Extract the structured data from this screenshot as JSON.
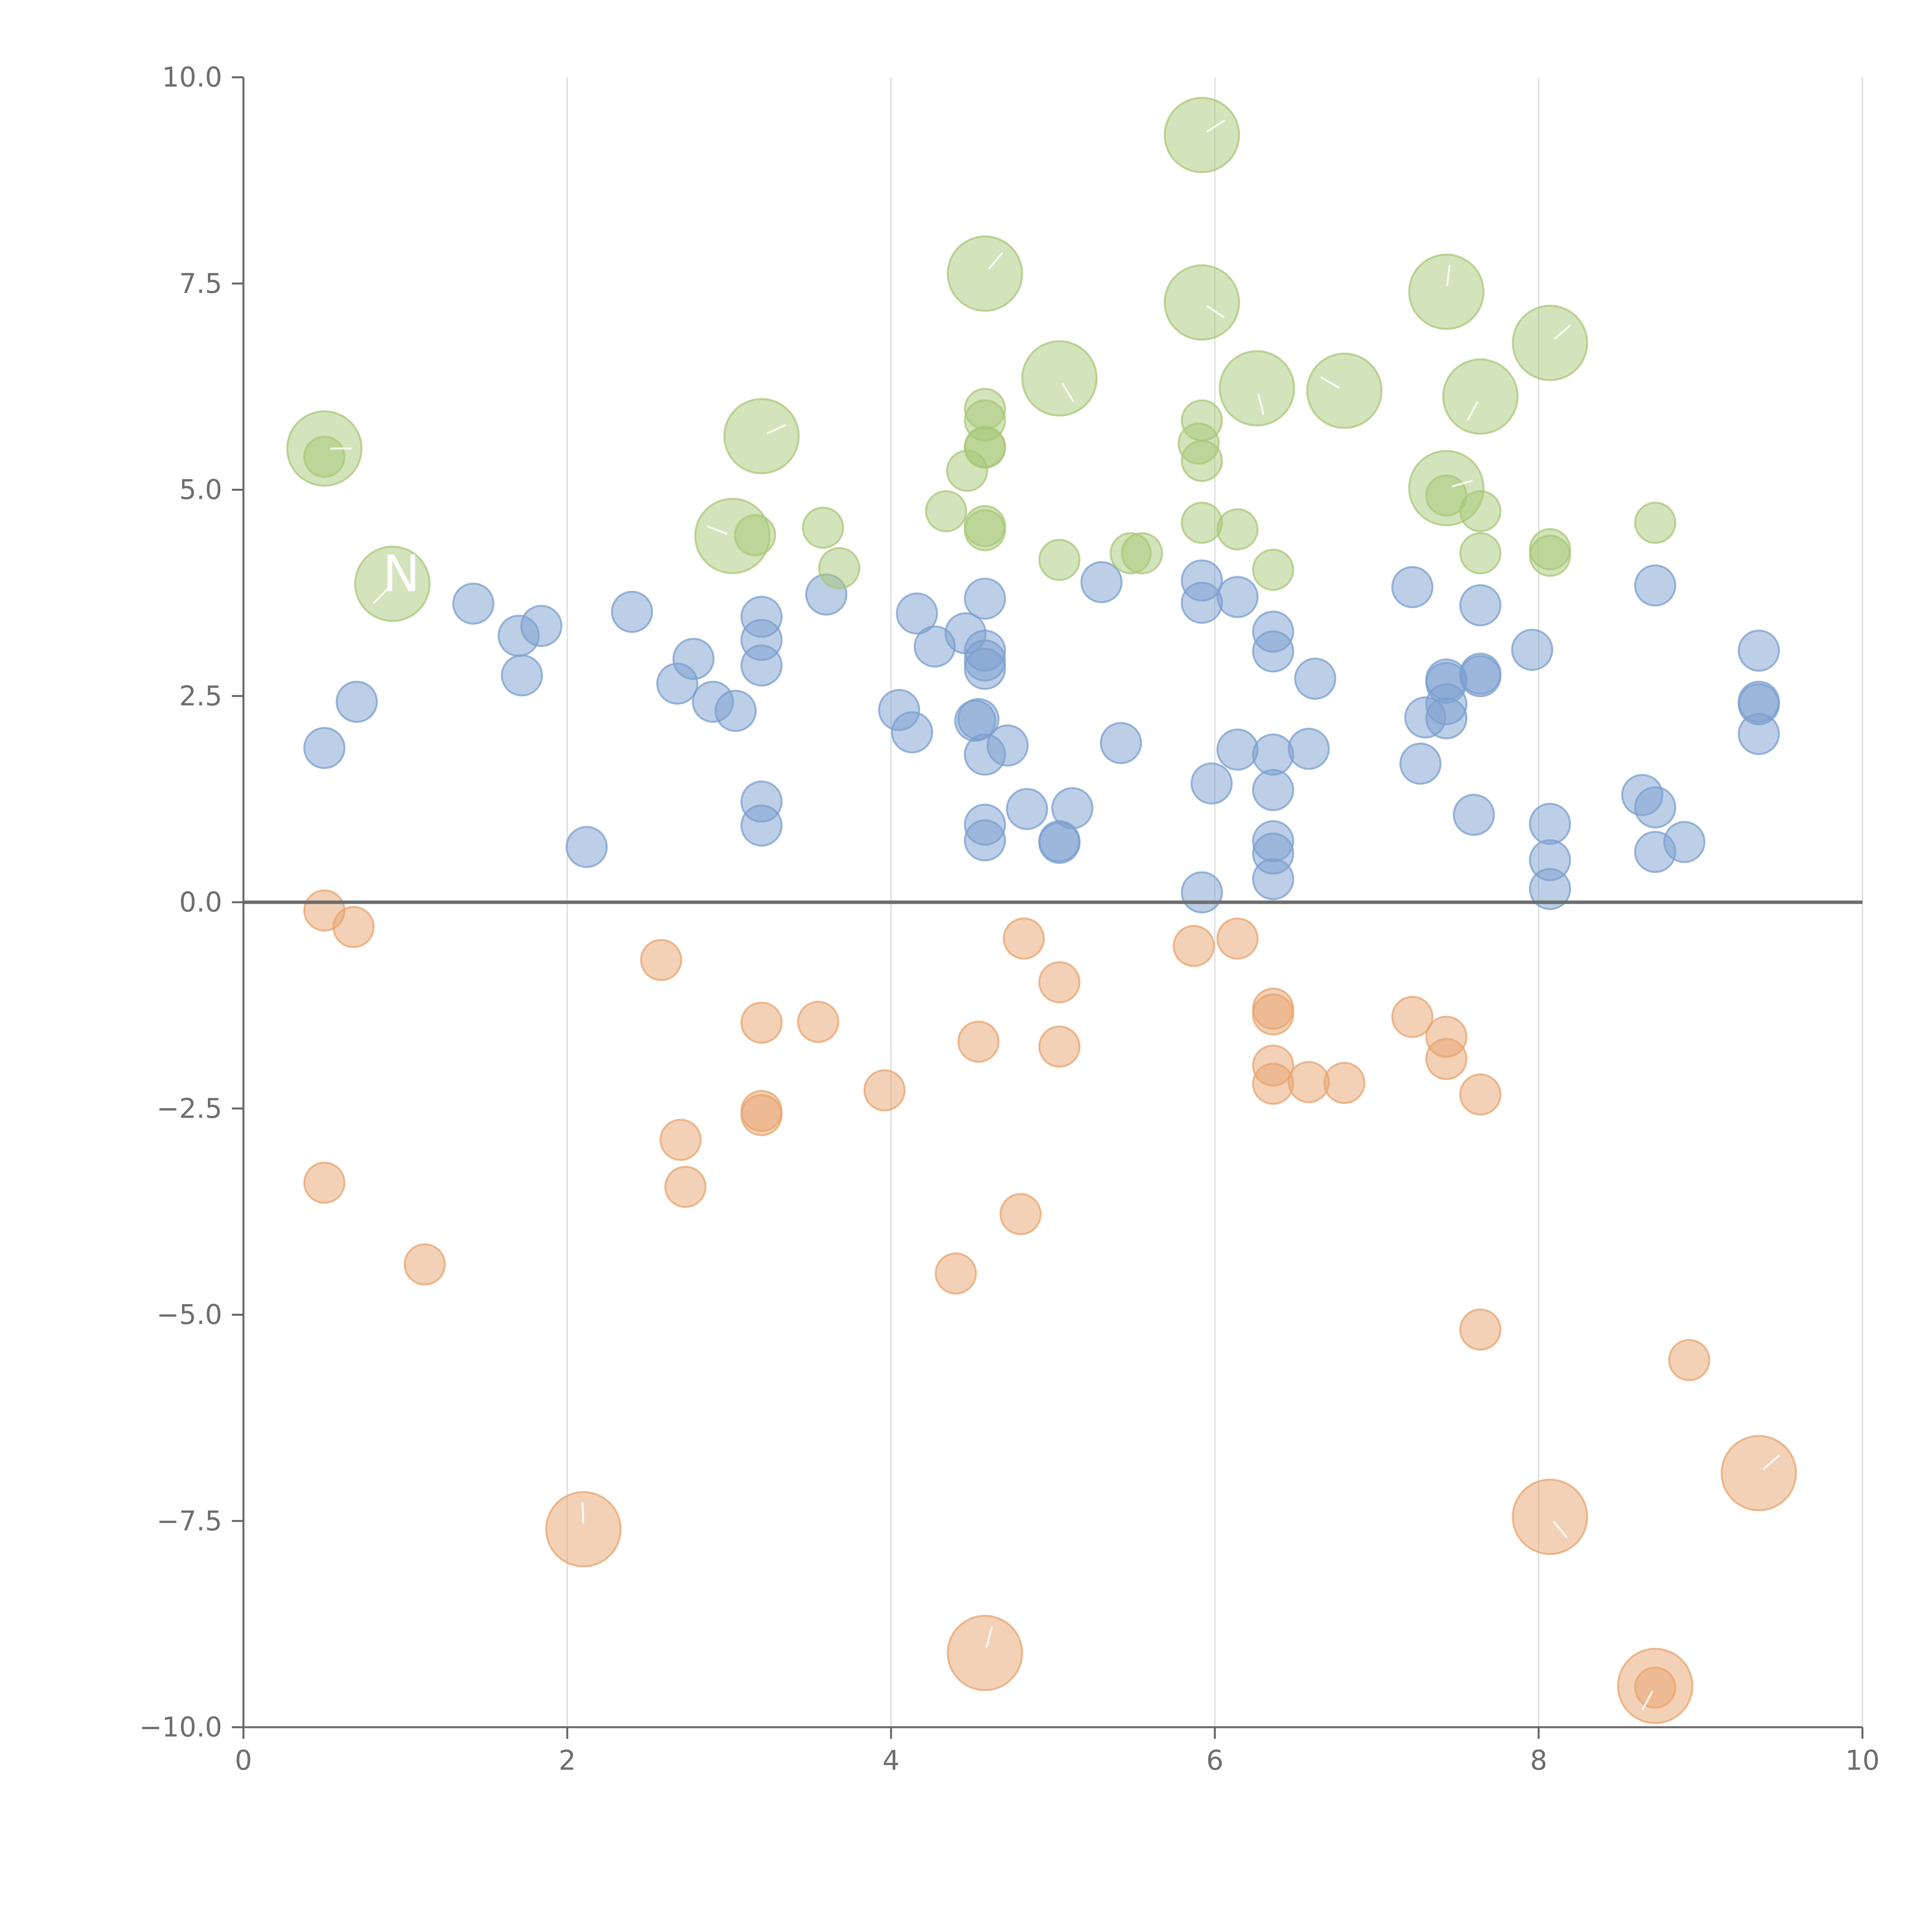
{
  "chart_data": {
    "type": "scatter",
    "title": "",
    "xlabel": "",
    "ylabel": "",
    "xlim": [
      0,
      10
    ],
    "ylim": [
      -10,
      10
    ],
    "x_ticks": [
      0,
      2,
      4,
      6,
      8,
      10
    ],
    "x_tick_labels": [
      "0",
      "2",
      "4",
      "6",
      "8",
      "10"
    ],
    "y_ticks": [
      -10,
      -7.5,
      -5,
      -2.5,
      0,
      2.5,
      5,
      7.5,
      10
    ],
    "y_tick_labels": [
      "−10.0",
      "−7.5",
      "−5.0",
      "−2.5",
      "0.0",
      "2.5",
      "5.0",
      "7.5",
      "10.0"
    ],
    "grid": "vertical",
    "zero_line": 0,
    "annotations": [
      "N"
    ],
    "colors": {
      "blue": "#7b9fcf",
      "orange": "#e8a46f",
      "green": "#a8c878",
      "axis": "#666666",
      "grid": "#d9d9d9"
    },
    "series": [
      {
        "name": "blue",
        "color": "#7b9fcf",
        "points": [
          [
            0.5,
            1.87,
            1
          ],
          [
            0.7,
            2.43,
            1
          ],
          [
            1.42,
            3.62,
            1
          ],
          [
            1.7,
            3.23,
            1
          ],
          [
            1.72,
            2.75,
            1
          ],
          [
            1.84,
            3.35,
            1
          ],
          [
            2.12,
            0.67,
            1
          ],
          [
            2.4,
            3.52,
            1
          ],
          [
            2.68,
            2.65,
            1
          ],
          [
            2.78,
            2.95,
            1
          ],
          [
            2.9,
            2.43,
            1
          ],
          [
            3.04,
            2.32,
            1
          ],
          [
            3.2,
            3.46,
            1
          ],
          [
            3.2,
            3.18,
            1
          ],
          [
            3.2,
            2.87,
            1
          ],
          [
            3.2,
            1.22,
            1
          ],
          [
            3.2,
            0.93,
            1
          ],
          [
            3.6,
            3.73,
            1
          ],
          [
            4.05,
            2.33,
            1
          ],
          [
            4.13,
            2.06,
            1
          ],
          [
            4.16,
            3.5,
            1
          ],
          [
            4.27,
            3.1,
            1
          ],
          [
            4.46,
            3.26,
            1
          ],
          [
            4.52,
            2.2,
            1
          ],
          [
            4.54,
            2.22,
            1
          ],
          [
            4.58,
            3.68,
            1
          ],
          [
            4.58,
            3.05,
            1
          ],
          [
            4.58,
            2.93,
            1
          ],
          [
            4.58,
            2.83,
            1
          ],
          [
            4.58,
            1.79,
            1
          ],
          [
            4.58,
            0.94,
            1
          ],
          [
            4.58,
            0.75,
            1
          ],
          [
            4.72,
            1.9,
            1
          ],
          [
            4.84,
            1.13,
            1
          ],
          [
            5.04,
            0.74,
            1
          ],
          [
            5.04,
            0.72,
            1
          ],
          [
            5.12,
            1.14,
            1
          ],
          [
            5.3,
            3.88,
            1
          ],
          [
            5.42,
            1.93,
            1
          ],
          [
            5.92,
            3.9,
            1
          ],
          [
            5.92,
            3.63,
            1
          ],
          [
            5.92,
            0.12,
            1
          ],
          [
            5.98,
            1.44,
            1
          ],
          [
            6.14,
            3.7,
            1
          ],
          [
            6.14,
            1.85,
            1
          ],
          [
            6.36,
            3.28,
            1
          ],
          [
            6.36,
            3.04,
            1
          ],
          [
            6.36,
            1.79,
            1
          ],
          [
            6.36,
            1.36,
            1
          ],
          [
            6.36,
            0.74,
            1
          ],
          [
            6.36,
            0.59,
            1
          ],
          [
            6.36,
            0.28,
            1
          ],
          [
            6.58,
            1.86,
            1
          ],
          [
            6.62,
            2.71,
            1
          ],
          [
            7.22,
            3.82,
            1
          ],
          [
            7.27,
            1.68,
            1
          ],
          [
            7.3,
            2.24,
            1
          ],
          [
            7.43,
            2.7,
            1
          ],
          [
            7.43,
            2.66,
            1
          ],
          [
            7.43,
            2.4,
            1
          ],
          [
            7.43,
            2.23,
            1
          ],
          [
            7.6,
            1.06,
            1
          ],
          [
            7.64,
            3.6,
            1
          ],
          [
            7.64,
            2.77,
            1
          ],
          [
            7.64,
            2.74,
            1
          ],
          [
            7.96,
            3.06,
            1
          ],
          [
            8.07,
            0.95,
            1
          ],
          [
            8.07,
            0.51,
            1
          ],
          [
            8.07,
            0.16,
            1
          ],
          [
            8.64,
            1.3,
            1
          ],
          [
            8.72,
            3.84,
            1
          ],
          [
            8.72,
            1.15,
            1
          ],
          [
            8.72,
            0.61,
            1
          ],
          [
            8.9,
            0.73,
            1
          ],
          [
            9.36,
            3.05,
            1
          ],
          [
            9.36,
            2.43,
            1
          ],
          [
            9.36,
            2.4,
            1
          ],
          [
            9.36,
            2.04,
            1
          ]
        ]
      },
      {
        "name": "orange",
        "color": "#e8a46f",
        "points": [
          [
            0.5,
            -0.1,
            1
          ],
          [
            0.68,
            -0.3,
            1
          ],
          [
            0.5,
            -3.4,
            1
          ],
          [
            1.12,
            -4.39,
            1
          ],
          [
            2.1,
            -7.6,
            2.3
          ],
          [
            2.58,
            -0.7,
            1
          ],
          [
            2.7,
            -2.88,
            1
          ],
          [
            2.73,
            -3.45,
            1
          ],
          [
            3.2,
            -1.46,
            1
          ],
          [
            3.2,
            -2.53,
            1
          ],
          [
            3.2,
            -2.58,
            1
          ],
          [
            3.55,
            -1.45,
            1
          ],
          [
            3.96,
            -2.28,
            1
          ],
          [
            4.4,
            -4.5,
            1
          ],
          [
            4.54,
            -1.69,
            1
          ],
          [
            4.58,
            -9.1,
            2.3
          ],
          [
            4.8,
            -3.78,
            1
          ],
          [
            4.82,
            -0.44,
            1
          ],
          [
            5.04,
            -0.97,
            1
          ],
          [
            5.04,
            -1.75,
            1
          ],
          [
            5.87,
            -0.53,
            1
          ],
          [
            6.14,
            -0.44,
            1
          ],
          [
            6.36,
            -1.29,
            1
          ],
          [
            6.36,
            -1.36,
            1
          ],
          [
            6.36,
            -1.98,
            1
          ],
          [
            6.36,
            -2.2,
            1
          ],
          [
            6.58,
            -2.18,
            1
          ],
          [
            6.8,
            -2.19,
            1
          ],
          [
            7.22,
            -1.39,
            1
          ],
          [
            7.43,
            -1.63,
            1
          ],
          [
            7.43,
            -1.9,
            1
          ],
          [
            7.64,
            -2.33,
            1
          ],
          [
            7.64,
            -5.18,
            1
          ],
          [
            8.07,
            -7.45,
            2.3
          ],
          [
            8.72,
            -9.5,
            2.3
          ],
          [
            8.72,
            -9.52,
            1
          ],
          [
            8.93,
            -5.55,
            1
          ],
          [
            9.36,
            -6.92,
            2.3
          ]
        ]
      },
      {
        "name": "green",
        "color": "#a8c878",
        "points": [
          [
            0.5,
            5.5,
            2.3
          ],
          [
            0.5,
            5.4,
            1
          ],
          [
            0.92,
            3.86,
            2.3
          ],
          [
            3.02,
            4.44,
            2.3
          ],
          [
            3.16,
            4.45,
            1
          ],
          [
            3.2,
            5.65,
            2.3
          ],
          [
            3.58,
            4.54,
            1
          ],
          [
            3.68,
            4.05,
            1
          ],
          [
            4.34,
            4.74,
            1
          ],
          [
            4.47,
            5.23,
            1
          ],
          [
            4.58,
            7.62,
            2.3
          ],
          [
            4.58,
            5.98,
            1
          ],
          [
            4.58,
            5.84,
            1
          ],
          [
            4.58,
            5.52,
            1
          ],
          [
            4.58,
            5.51,
            1
          ],
          [
            4.58,
            4.56,
            1
          ],
          [
            4.58,
            4.51,
            1
          ],
          [
            5.04,
            6.35,
            2.3
          ],
          [
            5.04,
            4.15,
            1
          ],
          [
            5.48,
            4.23,
            1
          ],
          [
            5.55,
            4.23,
            1
          ],
          [
            5.92,
            9.3,
            2.3
          ],
          [
            5.92,
            7.27,
            2.3
          ],
          [
            5.92,
            5.84,
            1
          ],
          [
            5.9,
            5.56,
            1
          ],
          [
            5.92,
            5.35,
            1
          ],
          [
            5.92,
            4.6,
            1
          ],
          [
            6.14,
            4.52,
            1
          ],
          [
            6.26,
            6.23,
            2.3
          ],
          [
            6.36,
            4.03,
            1
          ],
          [
            6.8,
            6.2,
            2.3
          ],
          [
            7.43,
            7.4,
            2.3
          ],
          [
            7.43,
            5.02,
            2.3
          ],
          [
            7.43,
            4.93,
            1
          ],
          [
            7.64,
            6.13,
            2.3
          ],
          [
            7.64,
            4.74,
            1
          ],
          [
            7.64,
            4.23,
            1
          ],
          [
            8.07,
            6.78,
            2.3
          ],
          [
            8.07,
            4.28,
            1
          ],
          [
            8.07,
            4.2,
            1
          ],
          [
            8.72,
            4.6,
            1
          ]
        ]
      }
    ]
  }
}
